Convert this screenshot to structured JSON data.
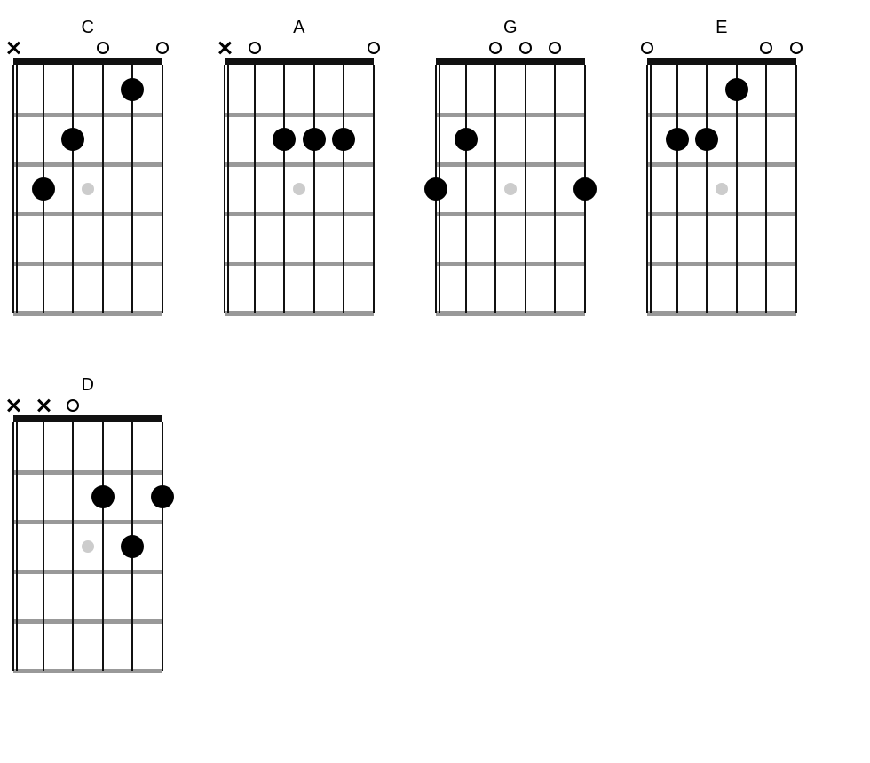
{
  "layout": {
    "fretboard_width": 168,
    "fretboard_height": 280,
    "num_strings": 6,
    "num_frets": 5,
    "string_color": "#111111",
    "fret_color": "#999999",
    "nut_color": "#111111",
    "finger_color": "#000000",
    "inlay_color": "#cccccc",
    "open_marker_color": "#000000",
    "mute_marker_color": "#000000",
    "finger_dot_radius": 13,
    "inlay_dot_radius": 7,
    "label_fontsize": 20
  },
  "chords": [
    {
      "name": "C",
      "markers": [
        "x",
        null,
        null,
        "o",
        null,
        "o"
      ],
      "fingers": [
        {
          "string": 2,
          "fret": 3
        },
        {
          "string": 3,
          "fret": 2
        },
        {
          "string": 5,
          "fret": 1
        }
      ],
      "inlay": {
        "fret": 3,
        "between_strings": [
          3,
          4
        ]
      }
    },
    {
      "name": "A",
      "markers": [
        "x",
        "o",
        null,
        null,
        null,
        "o"
      ],
      "fingers": [
        {
          "string": 3,
          "fret": 2
        },
        {
          "string": 4,
          "fret": 2
        },
        {
          "string": 5,
          "fret": 2
        }
      ],
      "inlay": {
        "fret": 3,
        "between_strings": [
          3,
          4
        ]
      }
    },
    {
      "name": "G",
      "markers": [
        null,
        null,
        "o",
        "o",
        "o",
        null
      ],
      "fingers": [
        {
          "string": 1,
          "fret": 3
        },
        {
          "string": 2,
          "fret": 2
        },
        {
          "string": 6,
          "fret": 3
        }
      ],
      "inlay": {
        "fret": 3,
        "between_strings": [
          3,
          4
        ]
      }
    },
    {
      "name": "E",
      "markers": [
        "o",
        null,
        null,
        null,
        "o",
        "o"
      ],
      "fingers": [
        {
          "string": 2,
          "fret": 2
        },
        {
          "string": 3,
          "fret": 2
        },
        {
          "string": 4,
          "fret": 1
        }
      ],
      "inlay": {
        "fret": 3,
        "between_strings": [
          3,
          4
        ]
      }
    },
    {
      "name": "D",
      "markers": [
        "x",
        "x",
        "o",
        null,
        null,
        null
      ],
      "fingers": [
        {
          "string": 4,
          "fret": 2
        },
        {
          "string": 5,
          "fret": 3
        },
        {
          "string": 6,
          "fret": 2
        }
      ],
      "inlay": {
        "fret": 3,
        "between_strings": [
          3,
          4
        ]
      }
    }
  ]
}
